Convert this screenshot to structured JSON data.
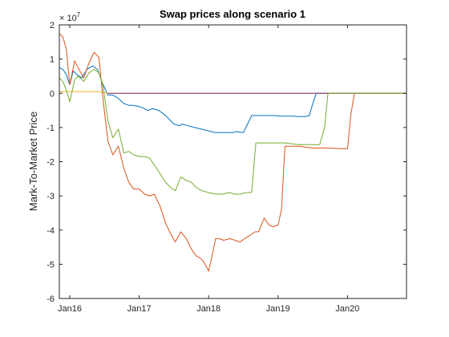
{
  "chart_data": {
    "type": "line",
    "title": "Swap prices along scenario 1",
    "xlabel": "",
    "ylabel": "Mark-To-Market Price",
    "y_exponent_base": "× 10",
    "y_exponent_power": "7",
    "xlim": [
      2015.85,
      2020.85
    ],
    "ylim": [
      -6,
      2
    ],
    "yticks": [
      -6,
      -5,
      -4,
      -3,
      -2,
      -1,
      0,
      1,
      2
    ],
    "ytick_labels": [
      "-6",
      "-5",
      "-4",
      "-3",
      "-2",
      "-1",
      "0",
      "1",
      "2"
    ],
    "xticks": [
      2016,
      2017,
      2018,
      2019,
      2020
    ],
    "xtick_labels": [
      "Jan16",
      "Jan17",
      "Jan18",
      "Jan19",
      "Jan20"
    ],
    "grid": false,
    "legend": "none",
    "series": [
      {
        "color": "#0072BD",
        "x": [
          2015.85,
          2015.9,
          2015.95,
          2016.0,
          2016.05,
          2016.1,
          2016.17,
          2016.25,
          2016.33,
          2016.4,
          2016.47,
          2016.55,
          2016.62,
          2016.7,
          2016.78,
          2016.85,
          2016.9,
          2016.98,
          2017.05,
          2017.12,
          2017.2,
          2017.28,
          2017.35,
          2017.43,
          2017.5,
          2017.58,
          2017.62,
          2017.7,
          2017.8,
          2017.9,
          2018.0,
          2018.1,
          2018.2,
          2018.28,
          2018.35,
          2018.4,
          2018.5,
          2018.62,
          2018.75,
          2018.85,
          2018.95,
          2019.05,
          2019.12,
          2019.2,
          2019.3,
          2019.4,
          2019.45,
          2019.5,
          2019.55,
          2020.85
        ],
        "y": [
          0.75,
          0.7,
          0.55,
          0.25,
          0.65,
          0.55,
          0.45,
          0.7,
          0.8,
          0.7,
          0.3,
          -0.05,
          -0.05,
          -0.15,
          -0.3,
          -0.35,
          -0.35,
          -0.38,
          -0.42,
          -0.5,
          -0.45,
          -0.5,
          -0.6,
          -0.75,
          -0.9,
          -0.95,
          -0.9,
          -0.95,
          -1.0,
          -1.05,
          -1.1,
          -1.15,
          -1.15,
          -1.15,
          -1.15,
          -1.12,
          -1.15,
          -0.65,
          -0.65,
          -0.65,
          -0.65,
          -0.67,
          -0.67,
          -0.67,
          -0.68,
          -0.68,
          -0.65,
          -0.3,
          0.0,
          0.0
        ]
      },
      {
        "color": "#D95319",
        "x": [
          2015.85,
          2015.9,
          2015.95,
          2016.0,
          2016.07,
          2016.12,
          2016.2,
          2016.28,
          2016.35,
          2016.42,
          2016.48,
          2016.55,
          2016.62,
          2016.7,
          2016.78,
          2016.85,
          2016.92,
          2017.0,
          2017.08,
          2017.15,
          2017.22,
          2017.3,
          2017.38,
          2017.45,
          2017.52,
          2017.6,
          2017.68,
          2017.75,
          2017.82,
          2017.9,
          2017.95,
          2018.0,
          2018.05,
          2018.1,
          2018.15,
          2018.22,
          2018.3,
          2018.38,
          2018.45,
          2018.52,
          2018.6,
          2018.67,
          2018.72,
          2018.8,
          2018.87,
          2018.93,
          2019.0,
          2019.05,
          2019.1,
          2019.3,
          2019.5,
          2019.7,
          2019.9,
          2020.0,
          2020.05,
          2020.1,
          2020.85
        ],
        "y": [
          1.75,
          1.65,
          1.3,
          0.25,
          0.95,
          0.75,
          0.45,
          0.9,
          1.2,
          1.05,
          -0.2,
          -1.4,
          -1.8,
          -1.55,
          -2.2,
          -2.6,
          -2.8,
          -2.8,
          -2.95,
          -3.0,
          -2.95,
          -3.3,
          -3.8,
          -4.1,
          -4.35,
          -4.05,
          -4.25,
          -4.55,
          -4.75,
          -4.85,
          -5.0,
          -5.2,
          -4.75,
          -4.25,
          -4.25,
          -4.3,
          -4.25,
          -4.3,
          -4.35,
          -4.25,
          -4.15,
          -4.05,
          -4.05,
          -3.65,
          -3.85,
          -3.9,
          -3.85,
          -3.4,
          -1.55,
          -1.55,
          -1.6,
          -1.6,
          -1.62,
          -1.62,
          -0.6,
          0.0,
          0.0
        ]
      },
      {
        "color": "#EDB120",
        "x": [
          2015.85,
          2016.4,
          2016.55,
          2020.85
        ],
        "y": [
          0.05,
          0.05,
          0.0,
          0.0
        ]
      },
      {
        "color": "#7E2F8E",
        "x": [
          2016.55,
          2020.85
        ],
        "y": [
          0.0,
          0.0
        ]
      },
      {
        "color": "#77AC30",
        "x": [
          2015.85,
          2015.9,
          2015.95,
          2016.0,
          2016.07,
          2016.12,
          2016.2,
          2016.28,
          2016.35,
          2016.42,
          2016.48,
          2016.55,
          2016.62,
          2016.7,
          2016.78,
          2016.85,
          2016.92,
          2017.0,
          2017.08,
          2017.15,
          2017.22,
          2017.3,
          2017.38,
          2017.45,
          2017.52,
          2017.6,
          2017.68,
          2017.75,
          2017.82,
          2017.9,
          2018.0,
          2018.1,
          2018.2,
          2018.3,
          2018.38,
          2018.45,
          2018.55,
          2018.62,
          2018.68,
          2018.8,
          2018.9,
          2019.0,
          2019.1,
          2019.2,
          2019.3,
          2019.4,
          2019.5,
          2019.6,
          2019.67,
          2019.72,
          2020.85
        ],
        "y": [
          0.45,
          0.35,
          0.1,
          -0.25,
          0.4,
          0.5,
          0.35,
          0.6,
          0.7,
          0.6,
          0.2,
          -0.8,
          -1.3,
          -1.05,
          -1.75,
          -1.7,
          -1.8,
          -1.85,
          -1.85,
          -1.9,
          -2.1,
          -2.35,
          -2.6,
          -2.75,
          -2.85,
          -2.45,
          -2.55,
          -2.6,
          -2.75,
          -2.85,
          -2.9,
          -2.95,
          -2.95,
          -2.9,
          -2.95,
          -2.95,
          -2.9,
          -2.9,
          -1.45,
          -1.45,
          -1.45,
          -1.45,
          -1.45,
          -1.48,
          -1.5,
          -1.5,
          -1.5,
          -1.5,
          -1.0,
          0.0,
          0.0
        ]
      }
    ]
  }
}
